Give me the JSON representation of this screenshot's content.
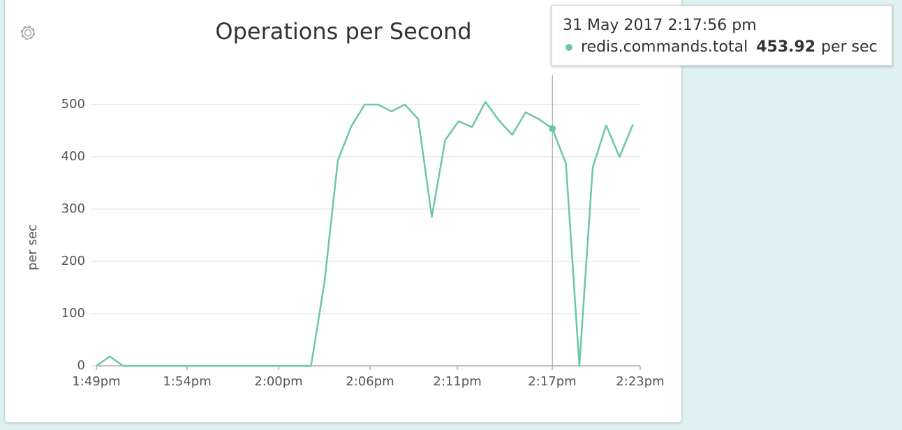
{
  "chart_data": {
    "type": "line",
    "title": "Operations per Second",
    "y_label": "per sec",
    "ylim": [
      0,
      556
    ],
    "yticks": [
      0,
      100,
      200,
      300,
      400,
      500
    ],
    "xlim": [
      829,
      863.5
    ],
    "xticks": [
      {
        "value": 829,
        "label": "1:49pm"
      },
      {
        "value": 834.76,
        "label": "1:54pm"
      },
      {
        "value": 840.56,
        "label": "2:00pm"
      },
      {
        "value": 846.36,
        "label": "2:06pm"
      },
      {
        "value": 851.9,
        "label": "2:11pm"
      },
      {
        "value": 857.92,
        "label": "2:17pm"
      },
      {
        "value": 863.5,
        "label": "2:23pm"
      }
    ],
    "grid": true,
    "series": [
      {
        "name": "redis.commands.total",
        "color": "#6cc7a5",
        "x": [
          829,
          829.85,
          830.7,
          831.55,
          832.4,
          833.26,
          834.11,
          834.96,
          835.81,
          836.66,
          837.51,
          838.36,
          839.21,
          840.06,
          840.91,
          841.77,
          842.62,
          843.47,
          844.32,
          845.17,
          846.02,
          846.87,
          847.72,
          848.57,
          849.42,
          850.28,
          851.13,
          851.98,
          852.83,
          853.68,
          854.53,
          855.38,
          856.23,
          857.08,
          857.93,
          858.79,
          859.64,
          860.49,
          861.34,
          862.19,
          863.04
        ],
        "values": [
          0,
          18,
          0,
          0,
          0,
          0,
          0,
          0,
          0,
          0,
          0,
          0,
          0,
          0,
          0,
          0,
          0,
          160,
          393,
          458,
          500,
          500,
          487,
          500,
          472,
          285,
          432,
          468,
          457,
          505,
          470,
          442,
          485,
          472,
          453.92,
          387,
          0,
          380,
          460,
          400,
          462
        ]
      }
    ],
    "tooltip": {
      "time": "31 May 2017 2:17:56 pm"
    }
  }
}
